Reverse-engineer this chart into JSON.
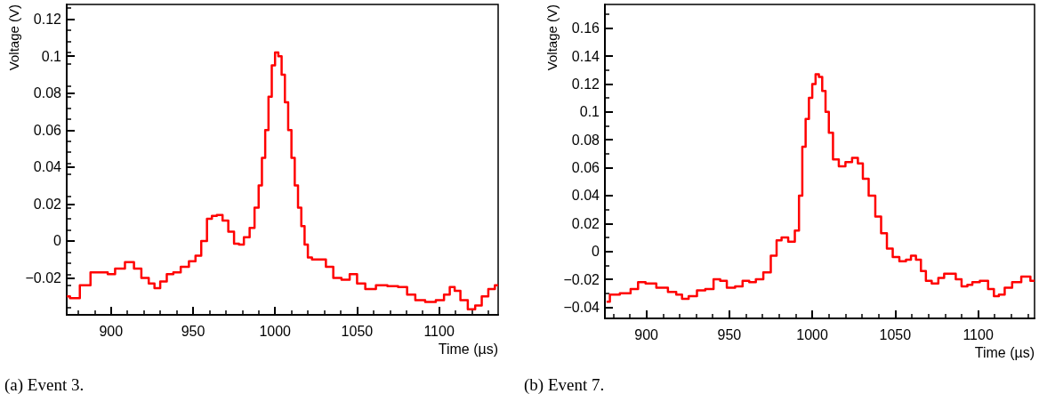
{
  "chart_data": [
    {
      "type": "step",
      "title": "(a) Event 3.",
      "xlabel": "Time (µs)",
      "ylabel": "Voltage (V)",
      "xlim": [
        873,
        1136
      ],
      "xticks": [
        900,
        950,
        1000,
        1050,
        1100
      ],
      "ylim": [
        -0.04,
        0.128
      ],
      "yticks": [
        -0.02,
        0,
        0.02,
        0.04,
        0.06,
        0.08,
        0.1,
        0.12
      ],
      "grid": false,
      "marker": "none",
      "series": [
        {
          "color": "#ff0000",
          "x": [
            873,
            877,
            885,
            890,
            896,
            900,
            905,
            912,
            916,
            921,
            925,
            928,
            932,
            936,
            940,
            945,
            950,
            953,
            957,
            960,
            963,
            966,
            970,
            973,
            977,
            979,
            983,
            986,
            989,
            991,
            993,
            995,
            997,
            999,
            1001,
            1003,
            1005,
            1007,
            1009,
            1011,
            1013,
            1015,
            1017,
            1019,
            1021,
            1024,
            1029,
            1033,
            1038,
            1043,
            1048,
            1052,
            1058,
            1065,
            1072,
            1078,
            1083,
            1088,
            1095,
            1101,
            1105,
            1108,
            1111,
            1115,
            1120,
            1124,
            1128,
            1132,
            1136
          ],
          "values": [
            -0.03,
            -0.031,
            -0.024,
            -0.017,
            -0.017,
            -0.018,
            -0.015,
            -0.0115,
            -0.015,
            -0.02,
            -0.023,
            -0.0255,
            -0.022,
            -0.018,
            -0.017,
            -0.014,
            -0.011,
            -0.008,
            0,
            0.012,
            0.0135,
            0.014,
            0.011,
            0.005,
            -0.0015,
            -0.002,
            0.002,
            0.007,
            0.018,
            0.03,
            0.045,
            0.06,
            0.078,
            0.095,
            0.102,
            0.1,
            0.09,
            0.075,
            0.06,
            0.045,
            0.03,
            0.018,
            0.008,
            -0.002,
            -0.009,
            -0.01,
            -0.01,
            -0.014,
            -0.02,
            -0.021,
            -0.018,
            -0.023,
            -0.026,
            -0.024,
            -0.0245,
            -0.025,
            -0.029,
            -0.032,
            -0.033,
            -0.032,
            -0.029,
            -0.025,
            -0.027,
            -0.032,
            -0.037,
            -0.035,
            -0.03,
            -0.026,
            -0.024
          ]
        }
      ]
    },
    {
      "type": "step",
      "title": "(b) Event 7.",
      "xlabel": "Time (µs)",
      "ylabel": "Voltage (V)",
      "xlim": [
        875,
        1134
      ],
      "xticks": [
        900,
        950,
        1000,
        1050,
        1100
      ],
      "ylim": [
        -0.048,
        0.177
      ],
      "yticks": [
        -0.04,
        -0.02,
        0,
        0.02,
        0.04,
        0.06,
        0.08,
        0.1,
        0.12,
        0.14,
        0.16
      ],
      "grid": false,
      "marker": "none",
      "series": [
        {
          "color": "#ff0000",
          "x": [
            876,
            880,
            888,
            893,
            897,
            902,
            910,
            916,
            920,
            923,
            928,
            933,
            938,
            943,
            946,
            951,
            956,
            960,
            964,
            968,
            973,
            977,
            980,
            983,
            988,
            991,
            993,
            995,
            997,
            999,
            1001,
            1003,
            1005,
            1007,
            1009,
            1011,
            1014,
            1018,
            1022,
            1026,
            1029,
            1032,
            1036,
            1040,
            1043,
            1047,
            1050,
            1055,
            1058,
            1061,
            1064,
            1067,
            1070,
            1074,
            1078,
            1081,
            1085,
            1088,
            1092,
            1095,
            1098,
            1104,
            1108,
            1111,
            1114,
            1118,
            1123,
            1129,
            1134
          ],
          "values": [
            -0.036,
            -0.031,
            -0.03,
            -0.027,
            -0.022,
            -0.023,
            -0.026,
            -0.029,
            -0.031,
            -0.034,
            -0.032,
            -0.028,
            -0.027,
            -0.02,
            -0.021,
            -0.026,
            -0.025,
            -0.021,
            -0.022,
            -0.02,
            -0.015,
            -0.003,
            0.008,
            0.01,
            0.007,
            0.015,
            0.04,
            0.075,
            0.095,
            0.11,
            0.12,
            0.127,
            0.125,
            0.115,
            0.1,
            0.085,
            0.066,
            0.061,
            0.064,
            0.067,
            0.063,
            0.052,
            0.04,
            0.025,
            0.013,
            0.002,
            -0.004,
            -0.007,
            -0.006,
            -0.003,
            -0.006,
            -0.014,
            -0.021,
            -0.023,
            -0.019,
            -0.016,
            -0.016,
            -0.02,
            -0.025,
            -0.024,
            -0.022,
            -0.021,
            -0.027,
            -0.032,
            -0.031,
            -0.026,
            -0.022,
            -0.018,
            -0.021
          ]
        }
      ]
    }
  ]
}
